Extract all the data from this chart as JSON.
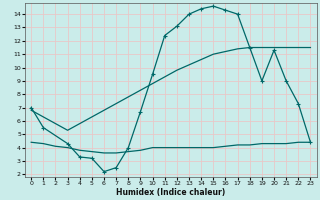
{
  "xlabel": "Humidex (Indice chaleur)",
  "bg_color": "#caecea",
  "grid_color": "#e8c8c8",
  "line_color": "#006868",
  "xlim": [
    -0.5,
    23.5
  ],
  "ylim": [
    1.8,
    14.8
  ],
  "yticks": [
    2,
    3,
    4,
    5,
    6,
    7,
    8,
    9,
    10,
    11,
    12,
    13,
    14
  ],
  "xticks": [
    0,
    1,
    2,
    3,
    4,
    5,
    6,
    7,
    8,
    9,
    10,
    11,
    12,
    13,
    14,
    15,
    16,
    17,
    18,
    19,
    20,
    21,
    22,
    23
  ],
  "curve1_x": [
    0,
    1,
    3,
    4,
    5,
    6,
    7,
    8,
    9,
    10,
    11,
    12,
    13,
    14,
    15,
    16,
    17,
    18,
    19,
    20,
    21,
    22,
    23
  ],
  "curve1_y": [
    7.0,
    5.5,
    4.3,
    3.3,
    3.2,
    2.2,
    2.5,
    4.0,
    6.7,
    9.5,
    12.4,
    13.1,
    14.0,
    14.4,
    14.6,
    14.3,
    14.0,
    11.5,
    9.0,
    11.3,
    9.0,
    7.3,
    4.4
  ],
  "curve2_x": [
    0,
    1,
    2,
    3,
    4,
    5,
    6,
    7,
    8,
    9,
    10,
    11,
    12,
    13,
    14,
    15,
    16,
    17,
    18,
    19,
    20,
    21,
    22,
    23
  ],
  "curve2_y": [
    6.8,
    6.3,
    5.8,
    5.3,
    5.8,
    6.3,
    6.8,
    7.3,
    7.8,
    8.3,
    8.8,
    9.3,
    9.8,
    10.2,
    10.6,
    11.0,
    11.2,
    11.4,
    11.5,
    11.5,
    11.5,
    11.5,
    11.5,
    11.5
  ],
  "curve3_x": [
    0,
    1,
    2,
    3,
    4,
    5,
    6,
    7,
    8,
    9,
    10,
    11,
    12,
    13,
    14,
    15,
    16,
    17,
    18,
    19,
    20,
    21,
    22,
    23
  ],
  "curve3_y": [
    4.4,
    4.3,
    4.1,
    4.0,
    3.8,
    3.7,
    3.6,
    3.6,
    3.7,
    3.8,
    4.0,
    4.0,
    4.0,
    4.0,
    4.0,
    4.0,
    4.1,
    4.2,
    4.2,
    4.3,
    4.3,
    4.3,
    4.4,
    4.4
  ]
}
